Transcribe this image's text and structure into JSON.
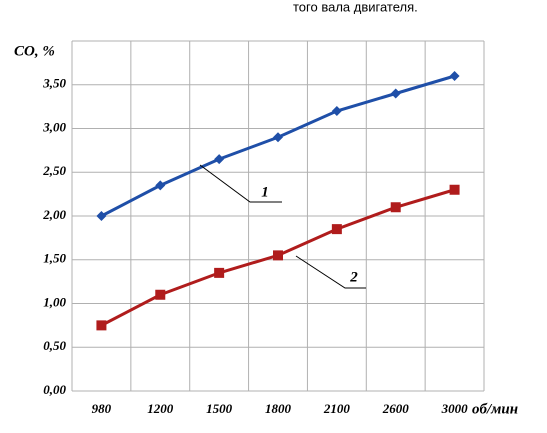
{
  "chart_data": {
    "type": "line",
    "caption": "того вала двигателя.",
    "y_label": "CO, %",
    "x_label": "об/мин",
    "categories": [
      "980",
      "1200",
      "1500",
      "1800",
      "2100",
      "2600",
      "3000"
    ],
    "series": [
      {
        "name": "1",
        "color": "#1f4fa8",
        "marker": "diamond",
        "values": [
          2.0,
          2.35,
          2.65,
          2.9,
          3.2,
          3.4,
          3.6
        ]
      },
      {
        "name": "2",
        "color": "#b01c1c",
        "marker": "square",
        "values": [
          0.75,
          1.1,
          1.35,
          1.55,
          1.85,
          2.1,
          2.3
        ]
      }
    ],
    "ylim": [
      0,
      4
    ],
    "yticks": [
      {
        "value": 0,
        "label": "0,00"
      },
      {
        "value": 0.5,
        "label": "0,50"
      },
      {
        "value": 1,
        "label": "1,00"
      },
      {
        "value": 1.5,
        "label": "1,50"
      },
      {
        "value": 2,
        "label": "2,00"
      },
      {
        "value": 2.5,
        "label": "2,50"
      },
      {
        "value": 3,
        "label": "3,00"
      },
      {
        "value": 3.5,
        "label": "3,50"
      }
    ],
    "grid": true
  }
}
